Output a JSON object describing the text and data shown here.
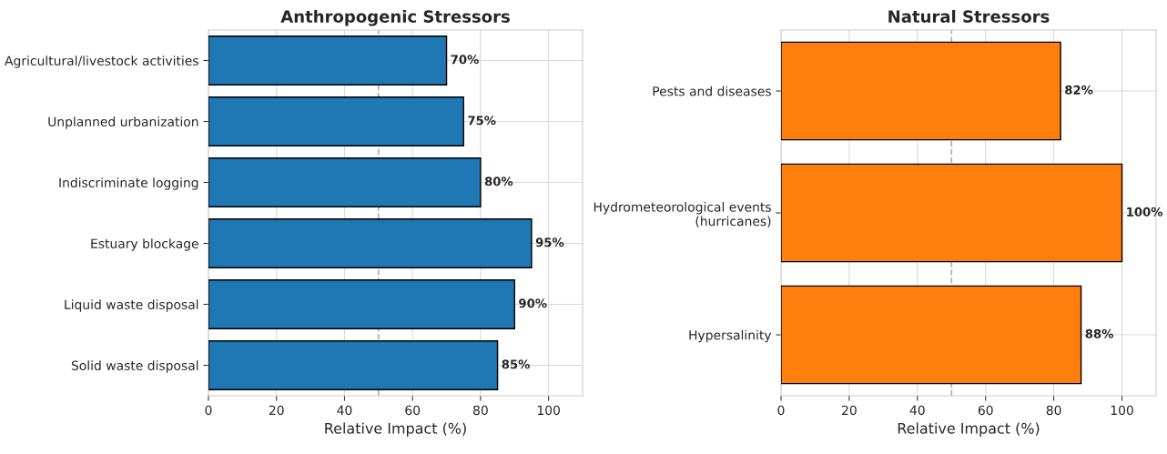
{
  "chart_data": [
    {
      "type": "bar",
      "orientation": "horizontal",
      "title": "Anthropogenic Stressors",
      "xlabel": "Relative Impact (%)",
      "categories": [
        "Agricultural/livestock activities",
        "Unplanned urbanization",
        "Indiscriminate logging",
        "Estuary blockage",
        "Liquid waste disposal",
        "Solid waste disposal"
      ],
      "values": [
        70,
        75,
        80,
        95,
        90,
        85
      ],
      "color": "#1f77b4",
      "value_labels": [
        "70%",
        "75%",
        "80%",
        "95%",
        "90%",
        "85%"
      ],
      "xlim": [
        0,
        110
      ],
      "xticks": [
        0,
        20,
        40,
        60,
        80,
        100
      ],
      "grid": true,
      "ref_lines": [
        {
          "axis": "x",
          "value": 50,
          "color": "#b0b0b0",
          "line_style": "dashed"
        }
      ]
    },
    {
      "type": "bar",
      "orientation": "horizontal",
      "title": "Natural Stressors",
      "xlabel": "Relative Impact (%)",
      "categories": [
        "Pests and diseases",
        "Hydrometeorological events\n(hurricanes)",
        "Hypersalinity"
      ],
      "values": [
        82,
        100,
        88
      ],
      "color": "#ff7f0e",
      "value_labels": [
        "82%",
        "100%",
        "88%"
      ],
      "xlim": [
        0,
        110
      ],
      "xticks": [
        0,
        20,
        40,
        60,
        80,
        100
      ],
      "grid": true,
      "ref_lines": [
        {
          "axis": "x",
          "value": 50,
          "color": "#b0b0b0",
          "line_style": "dashed"
        }
      ]
    }
  ]
}
